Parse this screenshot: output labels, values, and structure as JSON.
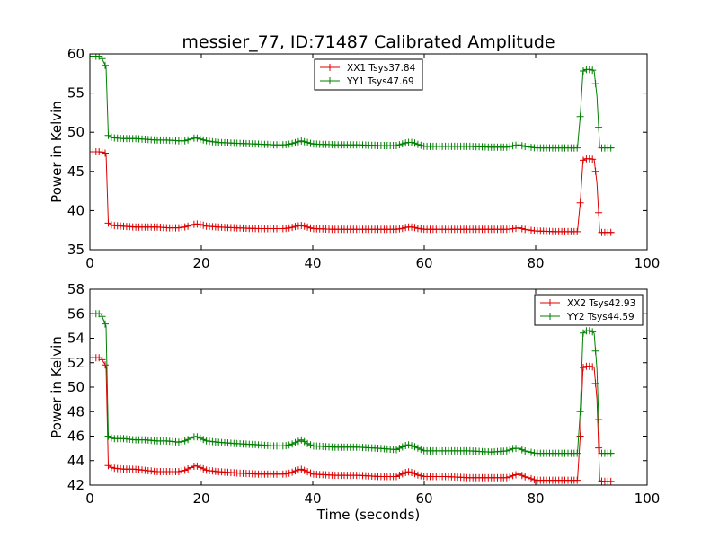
{
  "figure": {
    "title": "messier_77, ID:71487 Calibrated Amplitude"
  },
  "chart_data": [
    {
      "type": "line",
      "title": "messier_77, ID:71487 Calibrated Amplitude",
      "xlabel": "",
      "ylabel": "Power in Kelvin",
      "xlim": [
        0,
        100
      ],
      "ylim": [
        35,
        60
      ],
      "xticks": [
        0,
        20,
        40,
        60,
        80,
        100
      ],
      "yticks": [
        35,
        40,
        45,
        50,
        55,
        60
      ],
      "legend_position": "top-center",
      "grid": false,
      "marker": "+",
      "series": [
        {
          "name": "XX1 Tsys37.84",
          "color": "#dd0000",
          "points": [
            [
              0,
              47.5
            ],
            [
              1,
              47.5
            ],
            [
              2,
              47.5
            ],
            [
              2.9,
              47.3
            ],
            [
              3.3,
              38.4
            ],
            [
              4,
              38.1
            ],
            [
              6,
              38.0
            ],
            [
              8,
              37.9
            ],
            [
              10,
              37.9
            ],
            [
              12,
              37.9
            ],
            [
              14,
              37.8
            ],
            [
              16,
              37.8
            ],
            [
              17,
              37.9
            ],
            [
              18,
              38.1
            ],
            [
              19,
              38.3
            ],
            [
              20,
              38.2
            ],
            [
              21,
              38.0
            ],
            [
              23,
              37.9
            ],
            [
              26,
              37.8
            ],
            [
              30,
              37.7
            ],
            [
              33,
              37.7
            ],
            [
              35,
              37.7
            ],
            [
              36,
              37.8
            ],
            [
              37,
              38.0
            ],
            [
              38,
              38.1
            ],
            [
              39,
              37.9
            ],
            [
              40,
              37.7
            ],
            [
              44,
              37.6
            ],
            [
              48,
              37.6
            ],
            [
              52,
              37.6
            ],
            [
              55,
              37.6
            ],
            [
              56,
              37.7
            ],
            [
              57,
              37.9
            ],
            [
              58,
              37.9
            ],
            [
              59,
              37.7
            ],
            [
              60,
              37.6
            ],
            [
              64,
              37.6
            ],
            [
              68,
              37.6
            ],
            [
              72,
              37.6
            ],
            [
              75,
              37.6
            ],
            [
              76,
              37.7
            ],
            [
              77,
              37.8
            ],
            [
              78,
              37.6
            ],
            [
              80,
              37.4
            ],
            [
              84,
              37.3
            ],
            [
              87.5,
              37.3
            ],
            [
              88,
              41.0
            ],
            [
              88.5,
              46.4
            ],
            [
              89,
              46.6
            ],
            [
              90,
              46.6
            ],
            [
              90.5,
              46.5
            ],
            [
              91,
              43.5
            ],
            [
              91.5,
              37.2
            ],
            [
              92,
              37.2
            ],
            [
              93,
              37.2
            ],
            [
              94,
              37.2
            ]
          ]
        },
        {
          "name": "YY1 Tsys47.69",
          "color": "#008000",
          "points": [
            [
              0,
              59.7
            ],
            [
              1,
              59.7
            ],
            [
              2,
              59.7
            ],
            [
              2.9,
              58.3
            ],
            [
              3.3,
              49.6
            ],
            [
              4,
              49.3
            ],
            [
              6,
              49.2
            ],
            [
              8,
              49.2
            ],
            [
              10,
              49.1
            ],
            [
              12,
              49.0
            ],
            [
              14,
              49.0
            ],
            [
              16,
              48.9
            ],
            [
              17,
              48.9
            ],
            [
              18,
              49.1
            ],
            [
              19,
              49.3
            ],
            [
              20,
              49.1
            ],
            [
              21,
              48.9
            ],
            [
              23,
              48.7
            ],
            [
              26,
              48.6
            ],
            [
              30,
              48.5
            ],
            [
              33,
              48.4
            ],
            [
              35,
              48.4
            ],
            [
              36,
              48.5
            ],
            [
              37,
              48.7
            ],
            [
              38,
              48.9
            ],
            [
              39,
              48.7
            ],
            [
              40,
              48.5
            ],
            [
              44,
              48.4
            ],
            [
              48,
              48.4
            ],
            [
              52,
              48.3
            ],
            [
              55,
              48.3
            ],
            [
              56,
              48.5
            ],
            [
              57,
              48.7
            ],
            [
              58,
              48.7
            ],
            [
              59,
              48.4
            ],
            [
              60,
              48.2
            ],
            [
              64,
              48.2
            ],
            [
              68,
              48.2
            ],
            [
              72,
              48.1
            ],
            [
              75,
              48.1
            ],
            [
              76,
              48.3
            ],
            [
              77,
              48.4
            ],
            [
              78,
              48.2
            ],
            [
              80,
              48.0
            ],
            [
              84,
              48.0
            ],
            [
              87.5,
              48.0
            ],
            [
              88,
              52.0
            ],
            [
              88.5,
              57.8
            ],
            [
              89,
              58.0
            ],
            [
              90,
              58.0
            ],
            [
              90.5,
              57.8
            ],
            [
              91,
              54.6
            ],
            [
              91.5,
              48.0
            ],
            [
              92,
              48.0
            ],
            [
              93,
              48.0
            ],
            [
              94,
              48.0
            ]
          ]
        }
      ]
    },
    {
      "type": "line",
      "title": "",
      "xlabel": "Time (seconds)",
      "ylabel": "Power in Kelvin",
      "xlim": [
        0,
        100
      ],
      "ylim": [
        42,
        58
      ],
      "xticks": [
        0,
        20,
        40,
        60,
        80,
        100
      ],
      "yticks": [
        42,
        44,
        46,
        48,
        50,
        52,
        54,
        56,
        58
      ],
      "legend_position": "top-right",
      "grid": false,
      "marker": "+",
      "series": [
        {
          "name": "XX2 Tsys42.93",
          "color": "#dd0000",
          "points": [
            [
              0,
              52.4
            ],
            [
              1,
              52.4
            ],
            [
              2,
              52.4
            ],
            [
              2.9,
              51.7
            ],
            [
              3.3,
              43.6
            ],
            [
              4,
              43.4
            ],
            [
              6,
              43.3
            ],
            [
              8,
              43.3
            ],
            [
              10,
              43.2
            ],
            [
              12,
              43.1
            ],
            [
              14,
              43.1
            ],
            [
              16,
              43.1
            ],
            [
              17,
              43.2
            ],
            [
              18,
              43.4
            ],
            [
              19,
              43.6
            ],
            [
              20,
              43.4
            ],
            [
              21,
              43.2
            ],
            [
              23,
              43.1
            ],
            [
              26,
              43.0
            ],
            [
              30,
              42.9
            ],
            [
              33,
              42.9
            ],
            [
              35,
              42.9
            ],
            [
              36,
              43.0
            ],
            [
              37,
              43.2
            ],
            [
              38,
              43.3
            ],
            [
              39,
              43.1
            ],
            [
              40,
              42.9
            ],
            [
              44,
              42.8
            ],
            [
              48,
              42.8
            ],
            [
              52,
              42.7
            ],
            [
              55,
              42.7
            ],
            [
              56,
              42.9
            ],
            [
              57,
              43.1
            ],
            [
              58,
              43.0
            ],
            [
              59,
              42.8
            ],
            [
              60,
              42.7
            ],
            [
              64,
              42.7
            ],
            [
              68,
              42.6
            ],
            [
              72,
              42.6
            ],
            [
              75,
              42.6
            ],
            [
              76,
              42.8
            ],
            [
              77,
              42.9
            ],
            [
              78,
              42.7
            ],
            [
              80,
              42.4
            ],
            [
              84,
              42.4
            ],
            [
              87.5,
              42.4
            ],
            [
              88,
              46.0
            ],
            [
              88.5,
              51.6
            ],
            [
              89,
              51.7
            ],
            [
              90,
              51.7
            ],
            [
              90.5,
              51.6
            ],
            [
              91,
              49.0
            ],
            [
              91.5,
              42.4
            ],
            [
              92,
              42.3
            ],
            [
              93,
              42.3
            ],
            [
              94,
              42.3
            ]
          ]
        },
        {
          "name": "YY2 Tsys44.59",
          "color": "#008000",
          "points": [
            [
              0,
              56.0
            ],
            [
              1,
              56.0
            ],
            [
              2,
              56.0
            ],
            [
              2.9,
              55.0
            ],
            [
              3.3,
              46.0
            ],
            [
              4,
              45.8
            ],
            [
              6,
              45.8
            ],
            [
              8,
              45.7
            ],
            [
              10,
              45.7
            ],
            [
              12,
              45.6
            ],
            [
              14,
              45.6
            ],
            [
              16,
              45.5
            ],
            [
              17,
              45.6
            ],
            [
              18,
              45.8
            ],
            [
              19,
              46.0
            ],
            [
              20,
              45.8
            ],
            [
              21,
              45.6
            ],
            [
              23,
              45.5
            ],
            [
              26,
              45.4
            ],
            [
              30,
              45.3
            ],
            [
              33,
              45.2
            ],
            [
              35,
              45.2
            ],
            [
              36,
              45.3
            ],
            [
              37,
              45.5
            ],
            [
              38,
              45.7
            ],
            [
              39,
              45.4
            ],
            [
              40,
              45.2
            ],
            [
              44,
              45.1
            ],
            [
              48,
              45.1
            ],
            [
              52,
              45.0
            ],
            [
              55,
              44.9
            ],
            [
              56,
              45.1
            ],
            [
              57,
              45.3
            ],
            [
              58,
              45.2
            ],
            [
              59,
              45.0
            ],
            [
              60,
              44.8
            ],
            [
              64,
              44.8
            ],
            [
              68,
              44.8
            ],
            [
              72,
              44.7
            ],
            [
              75,
              44.8
            ],
            [
              76,
              45.0
            ],
            [
              77,
              45.0
            ],
            [
              78,
              44.8
            ],
            [
              80,
              44.6
            ],
            [
              84,
              44.6
            ],
            [
              87.5,
              44.6
            ],
            [
              88,
              48.0
            ],
            [
              88.5,
              54.4
            ],
            [
              89,
              54.6
            ],
            [
              90,
              54.6
            ],
            [
              90.5,
              54.4
            ],
            [
              91,
              51.5
            ],
            [
              91.5,
              44.6
            ],
            [
              92,
              44.6
            ],
            [
              93,
              44.6
            ],
            [
              94,
              44.6
            ]
          ]
        }
      ]
    }
  ]
}
